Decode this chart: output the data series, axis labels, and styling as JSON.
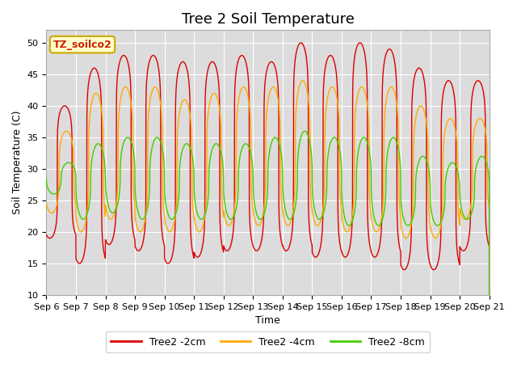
{
  "title": "Tree 2 Soil Temperature",
  "xlabel": "Time",
  "ylabel": "Soil Temperature (C)",
  "ylim": [
    10,
    52
  ],
  "bg_color": "#dcdcdc",
  "grid_color": "white",
  "annotation_text": "TZ_soilco2",
  "annotation_bg": "#ffffcc",
  "annotation_border": "#ccaa00",
  "annotation_text_color": "#cc2200",
  "legend_labels": [
    "Tree2 -2cm",
    "Tree2 -4cm",
    "Tree2 -8cm"
  ],
  "line_colors": [
    "#dd0000",
    "#ffaa00",
    "#44cc00"
  ],
  "x_tick_labels": [
    "Sep 6",
    "Sep 7",
    "Sep 8",
    "Sep 9",
    "Sep 10",
    "Sep 11",
    "Sep 12",
    "Sep 13",
    "Sep 14",
    "Sep 15",
    "Sep 16",
    "Sep 17",
    "Sep 18",
    "Sep 19",
    "Sep 20",
    "Sep 21"
  ],
  "title_fontsize": 13,
  "label_fontsize": 9,
  "tick_fontsize": 8,
  "red_peaks": [
    40,
    46,
    48,
    48,
    47,
    47,
    48,
    47,
    50,
    48,
    50,
    49,
    46,
    44,
    44
  ],
  "red_troughs": [
    19,
    15,
    18,
    17,
    15,
    16,
    17,
    17,
    17,
    16,
    16,
    16,
    14,
    14,
    17
  ],
  "orange_peaks": [
    36,
    42,
    43,
    43,
    41,
    42,
    43,
    43,
    44,
    43,
    43,
    43,
    40,
    38,
    38
  ],
  "orange_troughs": [
    23,
    20,
    22,
    20,
    20,
    20,
    21,
    21,
    21,
    21,
    20,
    20,
    19,
    19,
    22
  ],
  "green_peaks": [
    31,
    34,
    35,
    35,
    34,
    34,
    34,
    35,
    36,
    35,
    35,
    35,
    32,
    31,
    32
  ],
  "green_troughs": [
    26,
    22,
    23,
    22,
    22,
    22,
    22,
    22,
    22,
    22,
    21,
    21,
    21,
    21,
    22
  ],
  "red_peak_phase": 0.62,
  "orange_peak_phase": 0.68,
  "green_peak_phase": 0.75,
  "red_sharpness": 6.0,
  "orange_sharpness": 3.5,
  "green_sharpness": 2.5
}
